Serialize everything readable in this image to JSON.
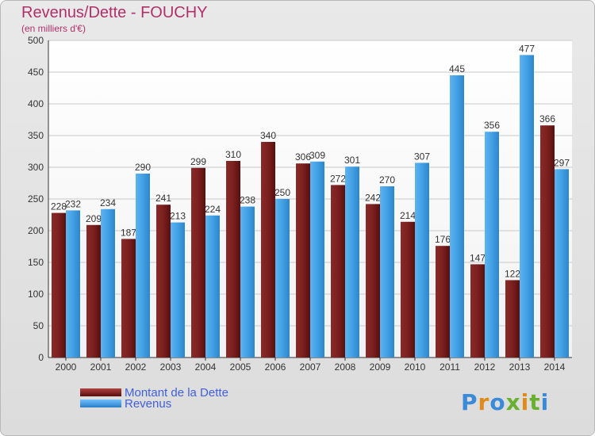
{
  "chart_title": "Revenus/Dette - FOUCHY",
  "chart_subtitle": "(en milliers d'€)",
  "logo_text": "Proxiti",
  "colors": {
    "dette": "#7a1f1f",
    "revenus": "#3f9de0",
    "title": "#b0306a",
    "legend_text": "#4060d8"
  },
  "chart_data": {
    "type": "bar",
    "title": "Revenus/Dette - FOUCHY",
    "subtitle": "(en milliers d'€)",
    "categories": [
      "2000",
      "2001",
      "2002",
      "2003",
      "2004",
      "2005",
      "2006",
      "2007",
      "2008",
      "2009",
      "2010",
      "2011",
      "2012",
      "2013",
      "2014"
    ],
    "series": [
      {
        "name": "Montant de la Dette",
        "values": [
          228,
          209,
          187,
          241,
          299,
          310,
          340,
          306,
          272,
          242,
          214,
          176,
          147,
          122,
          366
        ]
      },
      {
        "name": "Revenus",
        "values": [
          232,
          234,
          290,
          213,
          224,
          238,
          250,
          309,
          301,
          270,
          307,
          445,
          356,
          477,
          297
        ]
      }
    ],
    "ylim": [
      0,
      500
    ],
    "yticks": [
      0,
      50,
      100,
      150,
      200,
      250,
      300,
      350,
      400,
      450,
      500
    ],
    "grid": true,
    "legend": "bottom-left"
  }
}
